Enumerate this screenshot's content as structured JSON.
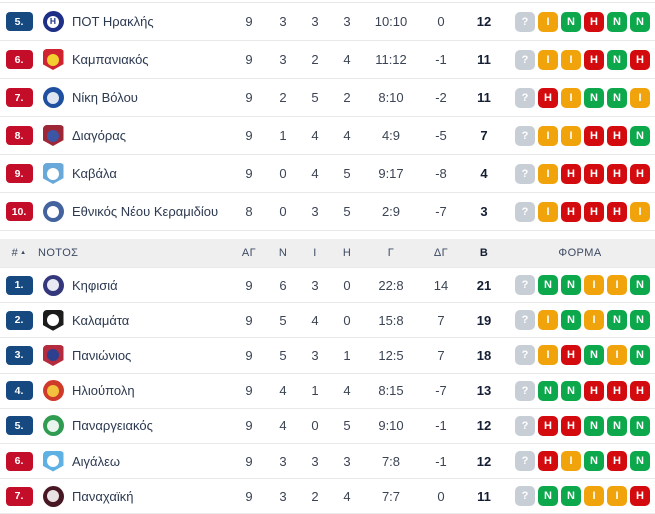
{
  "colors": {
    "win": "#0ca84b",
    "draw": "#f0a30b",
    "loss": "#d40b0e",
    "unknown": "#c8ced5",
    "badge_blue": "#15497f",
    "badge_red": "#c40d28",
    "header_bg": "#efefef",
    "row_border": "#e9e9e9",
    "team_text": "#2c3950",
    "stat_text": "#3b4454",
    "points_text": "#141e33",
    "header_text": "#3c4a63"
  },
  "form_legend": {
    "N": "win",
    "I": "draw",
    "H": "loss",
    "?": "unknown"
  },
  "south_header": {
    "rank_label": "#",
    "sort_icon": "▲",
    "group_label": "ΝΟΤΟΣ",
    "col_played": "ΑΓ",
    "col_wins": "Ν",
    "col_draws": "Ι",
    "col_losses": "Η",
    "col_goals": "Γ",
    "col_diff": "ΔΓ",
    "col_points": "Β",
    "col_form": "ΦΟΡΜΑ"
  },
  "top_section": {
    "rows": [
      {
        "pos": "5.",
        "badge": "blue",
        "team": "ΠΟΤ Ηρακλής",
        "logo": {
          "shape": "circle",
          "primary": "#1d2f87",
          "secondary": "#ffffff",
          "glyph": "H"
        },
        "played": "9",
        "wins": "3",
        "draws": "3",
        "losses": "3",
        "goals": "10:10",
        "diff": "0",
        "points": "12",
        "form": [
          "?",
          "I",
          "N",
          "H",
          "N",
          "N"
        ]
      },
      {
        "pos": "6.",
        "badge": "red",
        "team": "Καμπανιακός",
        "logo": {
          "shape": "shield",
          "primary": "#cf2332",
          "secondary": "#f3d02f",
          "glyph": ""
        },
        "played": "9",
        "wins": "3",
        "draws": "2",
        "losses": "4",
        "goals": "11:12",
        "diff": "-1",
        "points": "11",
        "form": [
          "?",
          "I",
          "I",
          "H",
          "N",
          "H"
        ]
      },
      {
        "pos": "7.",
        "badge": "red",
        "team": "Νίκη Βόλου",
        "logo": {
          "shape": "circle",
          "primary": "#1f4fa0",
          "secondary": "#dfe6f2",
          "glyph": ""
        },
        "played": "9",
        "wins": "2",
        "draws": "5",
        "losses": "2",
        "goals": "8:10",
        "diff": "-2",
        "points": "11",
        "form": [
          "?",
          "H",
          "I",
          "N",
          "N",
          "I"
        ]
      },
      {
        "pos": "8.",
        "badge": "red",
        "team": "Διαγόρας",
        "logo": {
          "shape": "shield",
          "primary": "#9e2737",
          "secondary": "#3c55a5",
          "glyph": ""
        },
        "played": "9",
        "wins": "1",
        "draws": "4",
        "losses": "4",
        "goals": "4:9",
        "diff": "-5",
        "points": "7",
        "form": [
          "?",
          "I",
          "I",
          "H",
          "H",
          "N"
        ]
      },
      {
        "pos": "9.",
        "badge": "red",
        "team": "Καβάλα",
        "logo": {
          "shape": "shield",
          "primary": "#69a9d9",
          "secondary": "#ffffff",
          "glyph": ""
        },
        "played": "9",
        "wins": "0",
        "draws": "4",
        "losses": "5",
        "goals": "9:17",
        "diff": "-8",
        "points": "4",
        "form": [
          "?",
          "I",
          "H",
          "H",
          "H",
          "H"
        ]
      },
      {
        "pos": "10.",
        "badge": "red",
        "team": "Εθνικός Νέου Κεραμιδίου",
        "logo": {
          "shape": "circle",
          "primary": "#42639e",
          "secondary": "#ffffff",
          "glyph": ""
        },
        "played": "8",
        "wins": "0",
        "draws": "3",
        "losses": "5",
        "goals": "2:9",
        "diff": "-7",
        "points": "3",
        "form": [
          "?",
          "I",
          "H",
          "H",
          "H",
          "I"
        ]
      }
    ]
  },
  "south_section": {
    "rows": [
      {
        "pos": "1.",
        "badge": "blue",
        "team": "Κηφισιά",
        "logo": {
          "shape": "circle",
          "primary": "#34377c",
          "secondary": "#e8e9f2",
          "glyph": ""
        },
        "played": "9",
        "wins": "6",
        "draws": "3",
        "losses": "0",
        "goals": "22:8",
        "diff": "14",
        "points": "21",
        "form": [
          "?",
          "N",
          "N",
          "I",
          "I",
          "N"
        ]
      },
      {
        "pos": "2.",
        "badge": "blue",
        "team": "Καλαμάτα",
        "logo": {
          "shape": "shield",
          "primary": "#1c1c1c",
          "secondary": "#ffffff",
          "glyph": ""
        },
        "played": "9",
        "wins": "5",
        "draws": "4",
        "losses": "0",
        "goals": "15:8",
        "diff": "7",
        "points": "19",
        "form": [
          "?",
          "I",
          "N",
          "I",
          "N",
          "N"
        ]
      },
      {
        "pos": "3.",
        "badge": "blue",
        "team": "Πανιώνιος",
        "logo": {
          "shape": "shield",
          "primary": "#b32b3c",
          "secondary": "#2d3f8f",
          "glyph": ""
        },
        "played": "9",
        "wins": "5",
        "draws": "3",
        "losses": "1",
        "goals": "12:5",
        "diff": "7",
        "points": "18",
        "form": [
          "?",
          "I",
          "H",
          "N",
          "I",
          "N"
        ]
      },
      {
        "pos": "4.",
        "badge": "blue",
        "team": "Ηλιούπολη",
        "logo": {
          "shape": "circle",
          "primary": "#cf3a2a",
          "secondary": "#f2c23e",
          "glyph": ""
        },
        "played": "9",
        "wins": "4",
        "draws": "1",
        "losses": "4",
        "goals": "8:15",
        "diff": "-7",
        "points": "13",
        "form": [
          "?",
          "N",
          "N",
          "H",
          "H",
          "H"
        ]
      },
      {
        "pos": "5.",
        "badge": "blue",
        "team": "Παναργειακός",
        "logo": {
          "shape": "circle",
          "primary": "#2f9c52",
          "secondary": "#e9f4ec",
          "glyph": ""
        },
        "played": "9",
        "wins": "4",
        "draws": "0",
        "losses": "5",
        "goals": "9:10",
        "diff": "-1",
        "points": "12",
        "form": [
          "?",
          "H",
          "H",
          "N",
          "N",
          "N"
        ]
      },
      {
        "pos": "6.",
        "badge": "red",
        "team": "Αιγάλεω",
        "logo": {
          "shape": "shield",
          "primary": "#5fb1e4",
          "secondary": "#ffffff",
          "glyph": ""
        },
        "played": "9",
        "wins": "3",
        "draws": "3",
        "losses": "3",
        "goals": "7:8",
        "diff": "-1",
        "points": "12",
        "form": [
          "?",
          "H",
          "I",
          "N",
          "H",
          "N"
        ]
      },
      {
        "pos": "7.",
        "badge": "red",
        "team": "Παναχαϊκή",
        "logo": {
          "shape": "circle",
          "primary": "#471723",
          "secondary": "#e8e2e4",
          "glyph": ""
        },
        "played": "9",
        "wins": "3",
        "draws": "2",
        "losses": "4",
        "goals": "7:7",
        "diff": "0",
        "points": "11",
        "form": [
          "?",
          "N",
          "N",
          "I",
          "I",
          "H"
        ]
      }
    ]
  }
}
